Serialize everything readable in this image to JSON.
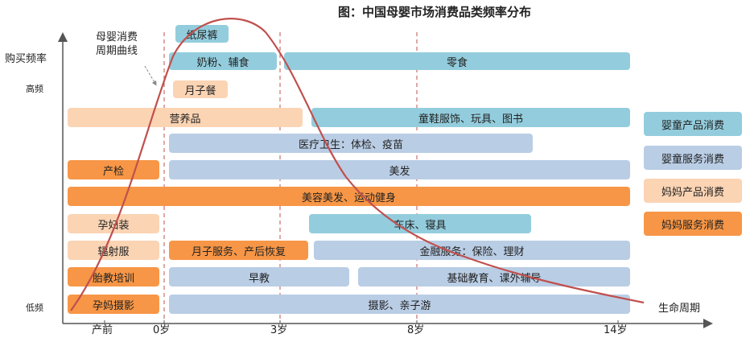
{
  "title": "图：中国母婴市场消费品类频率分布",
  "y_axis": {
    "label": "购买频率",
    "high": "高频",
    "low": "低频"
  },
  "x_axis": {
    "label": "生命周期",
    "ticks": [
      "产前",
      "0岁",
      "3岁",
      "8岁",
      "14岁"
    ]
  },
  "curve_label": [
    "母婴消费",
    "周期曲线"
  ],
  "bars": {
    "diaper": "纸尿裤",
    "formula": "奶粉、辅食",
    "snacks": "零食",
    "confinement_meal": "月子餐",
    "nutrition": "营养品",
    "kids_goods": "童鞋服饰、玩具、图书",
    "medical": "医疗卫生：体检、疫苗",
    "prenatal_check": "产检",
    "hair": "美发",
    "beauty": "美容美发、运动健身",
    "maternity_wear": "孕妇装",
    "bedding": "车床、寝具",
    "radiation_suit": "辐射服",
    "postpartum": "月子服务、产后恢复",
    "finance": "金融服务：保险、理财",
    "prenatal_edu": "胎教培训",
    "early_edu": "早教",
    "basic_edu": "基础教育、课外辅导",
    "maternity_photo": "孕妈摄影",
    "photo": "摄影、亲子游"
  },
  "legend": {
    "baby_product": "婴童产品消费",
    "baby_service": "婴童服务消费",
    "mom_product": "妈妈产品消费",
    "mom_service": "妈妈服务消费"
  },
  "colors": {
    "baby_product": "#93cddd",
    "baby_service": "#b9cde5",
    "mom_product": "#fbd4b4",
    "mom_service": "#f79646",
    "curve": "#c0504d"
  }
}
